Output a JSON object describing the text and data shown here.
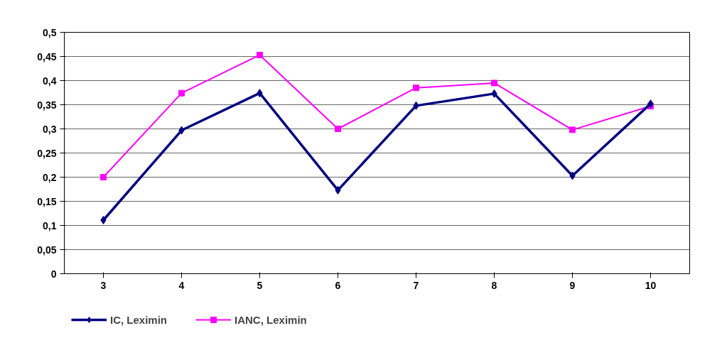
{
  "chart_data": {
    "type": "line",
    "categories": [
      "3",
      "4",
      "5",
      "6",
      "7",
      "8",
      "9",
      "10"
    ],
    "series": [
      {
        "name": "IC, Leximin",
        "color": "#000080",
        "marker": "diamond",
        "values": [
          0.111,
          0.297,
          0.374,
          0.173,
          0.348,
          0.373,
          0.203,
          0.352
        ]
      },
      {
        "name": "IANC, Leximin",
        "color": "#ff00ff",
        "marker": "square",
        "values": [
          0.2,
          0.374,
          0.453,
          0.3,
          0.385,
          0.395,
          0.298,
          0.347
        ]
      }
    ],
    "ylim": [
      0,
      0.5
    ],
    "yticks": [
      {
        "value": 0,
        "label": "0"
      },
      {
        "value": 0.05,
        "label": "0,05"
      },
      {
        "value": 0.1,
        "label": "0,1"
      },
      {
        "value": 0.15,
        "label": "0,15"
      },
      {
        "value": 0.2,
        "label": "0,2"
      },
      {
        "value": 0.25,
        "label": "0,25"
      },
      {
        "value": 0.3,
        "label": "0,3"
      },
      {
        "value": 0.35,
        "label": "0,35"
      },
      {
        "value": 0.4,
        "label": "0,4"
      },
      {
        "value": 0.45,
        "label": "0,45"
      },
      {
        "value": 0.5,
        "label": "0,5"
      }
    ],
    "grid": "y",
    "legend": "bottom left",
    "line_style": "solid"
  }
}
